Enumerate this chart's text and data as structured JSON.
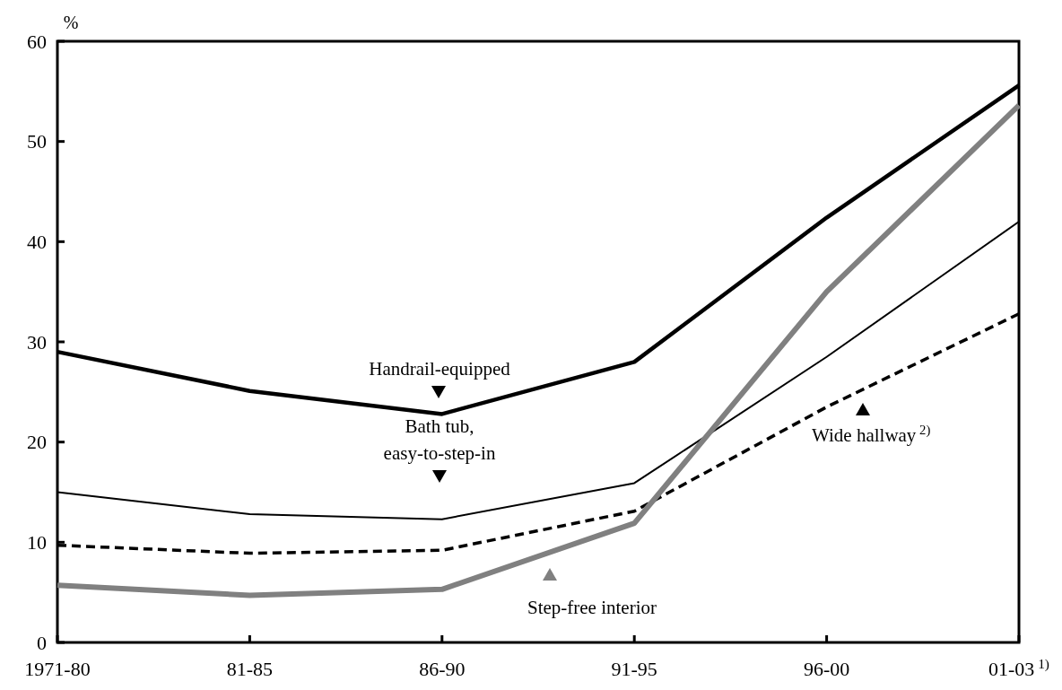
{
  "chart_data": {
    "type": "line",
    "ylabel": "%",
    "categories": [
      "1971-80",
      "81-85",
      "86-90",
      "91-95",
      "96-00",
      "01-03$^{1)}$"
    ],
    "ylim": [
      0,
      60
    ],
    "yticks": [
      0,
      10,
      20,
      30,
      40,
      50,
      60
    ],
    "grid": false,
    "legend": "bottom",
    "marker": "none",
    "series": [
      {
        "name": "Handrail-equipped",
        "color": "#000000",
        "line_style": "solid",
        "values": [
          29.0,
          25.1,
          22.8,
          28.0,
          42.4,
          55.6
        ]
      },
      {
        "name": "Bath tub, easy-to-step-in",
        "color": "#000000",
        "line_style": "solid",
        "values": [
          15.0,
          12.8,
          12.3,
          15.9,
          28.5,
          42.0
        ]
      },
      {
        "name": "Wide hallway$^{2)}$",
        "color": "#000000",
        "line_style": "dashed",
        "values": [
          9.7,
          8.9,
          9.2,
          13.1,
          23.5,
          32.8
        ]
      },
      {
        "name": "Step-free interior",
        "color": "#808080",
        "line_style": "solid",
        "values": [
          5.7,
          4.7,
          5.3,
          11.9,
          35.0,
          53.6
        ]
      }
    ]
  }
}
